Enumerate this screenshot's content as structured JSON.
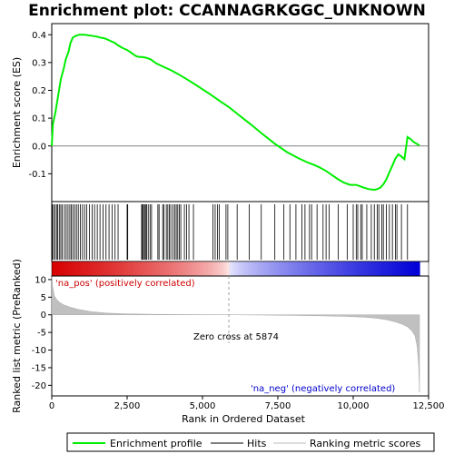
{
  "chart_data": {
    "type": "line",
    "title": "Enrichment plot: CCANNAGRKGGC_UNKNOWN",
    "xlabel": "Rank in Ordered Dataset",
    "ylabel_top": "Enrichment score (ES)",
    "ylabel_bottom": "Ranked list metric (PreRanked)",
    "xlim": [
      0,
      12500
    ],
    "x_ticks": [
      0,
      2500,
      5000,
      7500,
      10000,
      12500
    ],
    "x_tick_labels": [
      "0",
      "2,500",
      "5,000",
      "7,500",
      "10,000",
      "12,500"
    ],
    "es_ylim": [
      -0.2,
      0.44
    ],
    "es_ticks": [
      -0.1,
      0.0,
      0.1,
      0.2,
      0.3,
      0.4
    ],
    "es_tick_labels": [
      "-0.1",
      "0.0",
      "0.1",
      "0.2",
      "0.3",
      "0.4"
    ],
    "metric_ylim": [
      -23,
      11
    ],
    "metric_ticks": [
      10,
      5,
      0,
      -5,
      -10,
      -15,
      -20
    ],
    "metric_tick_labels": [
      "10",
      "5",
      "0",
      "-5",
      "-10",
      "-15",
      "-20"
    ],
    "n_genes": 12200,
    "zero_cross": 5874,
    "series": [
      {
        "name": "Enrichment profile",
        "color": "#00ee00",
        "x": [
          0,
          40,
          120,
          180,
          240,
          300,
          400,
          460,
          560,
          620,
          700,
          780,
          900,
          1000,
          1100,
          1200,
          1300,
          1400,
          1500,
          1600,
          1700,
          1800,
          1900,
          2000,
          2100,
          2200,
          2300,
          2400,
          2500,
          2600,
          2700,
          2800,
          2900,
          3000,
          3100,
          3200,
          3300,
          3400,
          3500,
          3600,
          3700,
          3800,
          3900,
          4000,
          4200,
          4400,
          4600,
          4800,
          5000,
          5200,
          5400,
          5600,
          5874,
          6200,
          6600,
          7000,
          7400,
          7800,
          8200,
          8500,
          8700,
          8900,
          9100,
          9300,
          9500,
          9700,
          9900,
          10100,
          10300,
          10500,
          10700,
          10800,
          10900,
          11000,
          11100,
          11200,
          11300,
          11400,
          11500,
          11600,
          11700,
          11800,
          11900,
          12000,
          12100,
          12200
        ],
        "values": [
          0.0,
          0.08,
          0.12,
          0.16,
          0.2,
          0.24,
          0.28,
          0.31,
          0.34,
          0.37,
          0.39,
          0.395,
          0.4,
          0.4,
          0.4,
          0.398,
          0.397,
          0.395,
          0.393,
          0.39,
          0.388,
          0.385,
          0.38,
          0.375,
          0.37,
          0.362,
          0.355,
          0.35,
          0.345,
          0.338,
          0.33,
          0.323,
          0.32,
          0.32,
          0.318,
          0.315,
          0.31,
          0.302,
          0.295,
          0.29,
          0.285,
          0.28,
          0.275,
          0.27,
          0.258,
          0.245,
          0.232,
          0.218,
          0.204,
          0.19,
          0.175,
          0.16,
          0.14,
          0.112,
          0.078,
          0.042,
          0.008,
          -0.022,
          -0.045,
          -0.06,
          -0.068,
          -0.078,
          -0.09,
          -0.105,
          -0.12,
          -0.132,
          -0.14,
          -0.14,
          -0.148,
          -0.155,
          -0.158,
          -0.155,
          -0.15,
          -0.138,
          -0.12,
          -0.095,
          -0.07,
          -0.045,
          -0.03,
          -0.038,
          -0.048,
          0.032,
          0.025,
          0.015,
          0.008,
          0.002
        ]
      },
      {
        "name": "Hits",
        "color": "#000000",
        "positions": [
          20,
          60,
          110,
          160,
          200,
          250,
          300,
          350,
          420,
          480,
          540,
          600,
          650,
          700,
          760,
          820,
          880,
          950,
          1020,
          1090,
          1160,
          1250,
          1340,
          1420,
          1510,
          1600,
          1700,
          1800,
          1900,
          2000,
          2100,
          2200,
          2500,
          2520,
          2980,
          3010,
          3040,
          3080,
          3110,
          3150,
          3200,
          3260,
          3310,
          3520,
          3560,
          3680,
          3720,
          3800,
          3850,
          3900,
          3950,
          4020,
          4080,
          4130,
          4180,
          4230,
          4280,
          4400,
          4470,
          4550,
          4700,
          5350,
          5420,
          5500,
          5560,
          5780,
          5840,
          6150,
          6550,
          6950,
          7400,
          7700,
          7900,
          8100,
          8300,
          8400,
          8550,
          8620,
          8800,
          9000,
          9100,
          9200,
          9500,
          9800,
          10000,
          10100,
          10150,
          10250,
          10300,
          10450,
          10600,
          10700,
          10800,
          10850,
          10950,
          11000,
          11100,
          11200,
          11300,
          11400,
          11450,
          11600,
          11800
        ]
      },
      {
        "name": "Ranking metric scores",
        "color": "#bbbbbb",
        "x": [
          0,
          30,
          80,
          150,
          250,
          400,
          600,
          900,
          1300,
          1800,
          2500,
          3500,
          4500,
          5874,
          7000,
          8000,
          9000,
          9800,
          10400,
          10800,
          11100,
          11400,
          11600,
          11800,
          11950,
          12050,
          12120,
          12170,
          12200
        ],
        "values": [
          10.8,
          8.0,
          5.5,
          4.5,
          3.6,
          2.8,
          2.2,
          1.5,
          0.9,
          0.5,
          0.25,
          0.12,
          0.05,
          0.0,
          -0.08,
          -0.18,
          -0.3,
          -0.45,
          -0.7,
          -1.0,
          -1.4,
          -2.0,
          -2.6,
          -3.4,
          -4.6,
          -6.0,
          -9.0,
          -14.0,
          -22.0
        ]
      }
    ],
    "annotations": {
      "pos_label": "'na_pos' (positively correlated)",
      "neg_label": "'na_neg' (negatively correlated)",
      "zero_label": "Zero cross at 5874"
    },
    "colors": {
      "pos": "#ee0000",
      "neg": "#0000ee",
      "neutral": "#f5f5f5"
    }
  },
  "legend": {
    "items": [
      {
        "label": "Enrichment profile",
        "color": "#00ee00"
      },
      {
        "label": "Hits",
        "color": "#000000"
      },
      {
        "label": "Ranking metric scores",
        "color": "#bbbbbb"
      }
    ]
  }
}
